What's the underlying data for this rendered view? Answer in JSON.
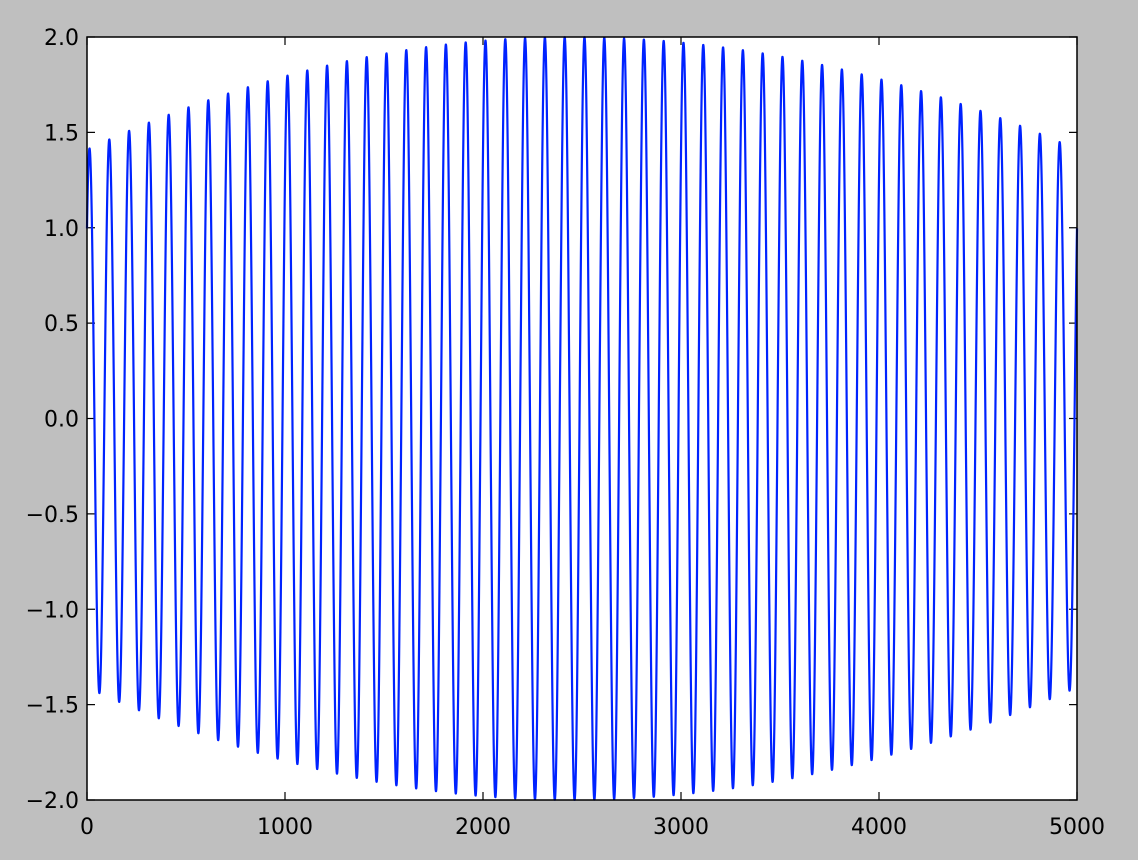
{
  "chart_data": {
    "type": "line",
    "title": "",
    "xlabel": "",
    "ylabel": "",
    "xlim": [
      0,
      5000
    ],
    "ylim": [
      -2.0,
      2.0
    ],
    "grid": false,
    "x_ticks": [
      0,
      1000,
      2000,
      3000,
      4000,
      5000
    ],
    "x_tick_labels": [
      "0",
      "1000",
      "2000",
      "3000",
      "4000",
      "5000"
    ],
    "y_ticks": [
      2.0,
      1.5,
      1.0,
      0.5,
      0.0,
      -0.5,
      -1.0,
      -1.5,
      -2.0
    ],
    "y_tick_labels": [
      "2.0",
      "1.5",
      "1.0",
      "0.5",
      "0.0",
      "−0.5",
      "−1.0",
      "−1.5",
      "−2.0"
    ],
    "series": [
      {
        "color": "#0022ff",
        "form": "amplitude-modulated sinusoid",
        "n_points": 5000,
        "carrier_period": 100,
        "carrier_phase": 0.785,
        "envelope_peak": 2.0,
        "envelope_peak_at": 2440,
        "envelope_at_x0": 1.41,
        "envelope_at_x5000": 1.41
      }
    ]
  },
  "colors": {
    "background": "#bfbfbf",
    "axes_face": "#ffffff",
    "line": "#0022ff"
  }
}
